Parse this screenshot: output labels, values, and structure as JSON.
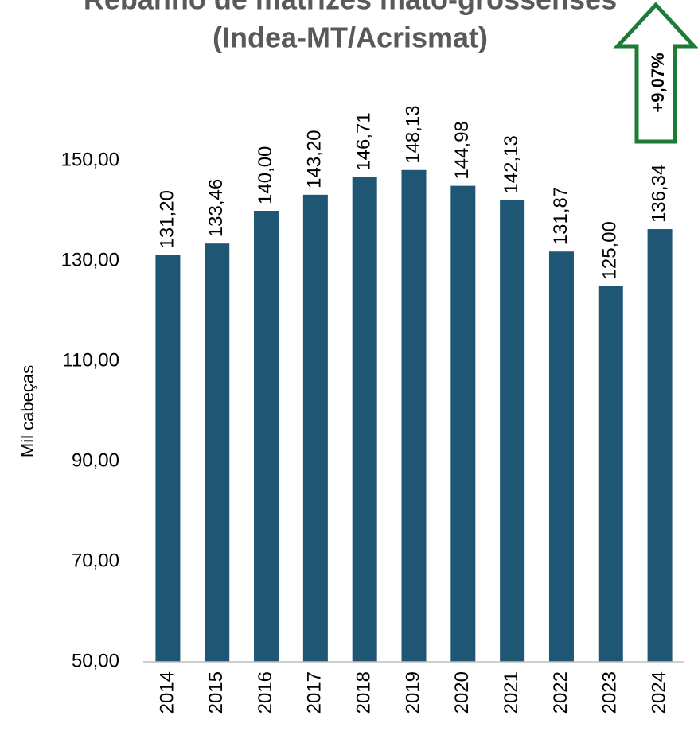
{
  "chart_data": {
    "type": "bar",
    "title": [
      "Rebanho de matrizes mato-grossenses",
      "(Indea-MT/Acrismat)"
    ],
    "y_label": "Mil cabeças",
    "annotation": "+9,07%",
    "categories": [
      "2014",
      "2015",
      "2016",
      "2017",
      "2018",
      "2019",
      "2020",
      "2021",
      "2022",
      "2023",
      "2024"
    ],
    "values": [
      131.2,
      133.46,
      140.0,
      143.2,
      146.71,
      148.13,
      144.98,
      142.13,
      131.87,
      125.0,
      136.34
    ],
    "value_labels": [
      "131,20",
      "133,46",
      "140,00",
      "143,20",
      "146,71",
      "148,13",
      "144,98",
      "142,13",
      "131,87",
      "125,00",
      "136,34"
    ],
    "color": "#1f5673",
    "ylim": [
      50,
      150
    ],
    "yticks": [
      {
        "value": 50,
        "label": "50,00"
      },
      {
        "value": 70,
        "label": "70,00"
      },
      {
        "value": 90,
        "label": "90,00"
      },
      {
        "value": 110,
        "label": "110,00"
      },
      {
        "value": 130,
        "label": "130,00"
      },
      {
        "value": 150,
        "label": "150,00"
      }
    ],
    "grid": false
  }
}
